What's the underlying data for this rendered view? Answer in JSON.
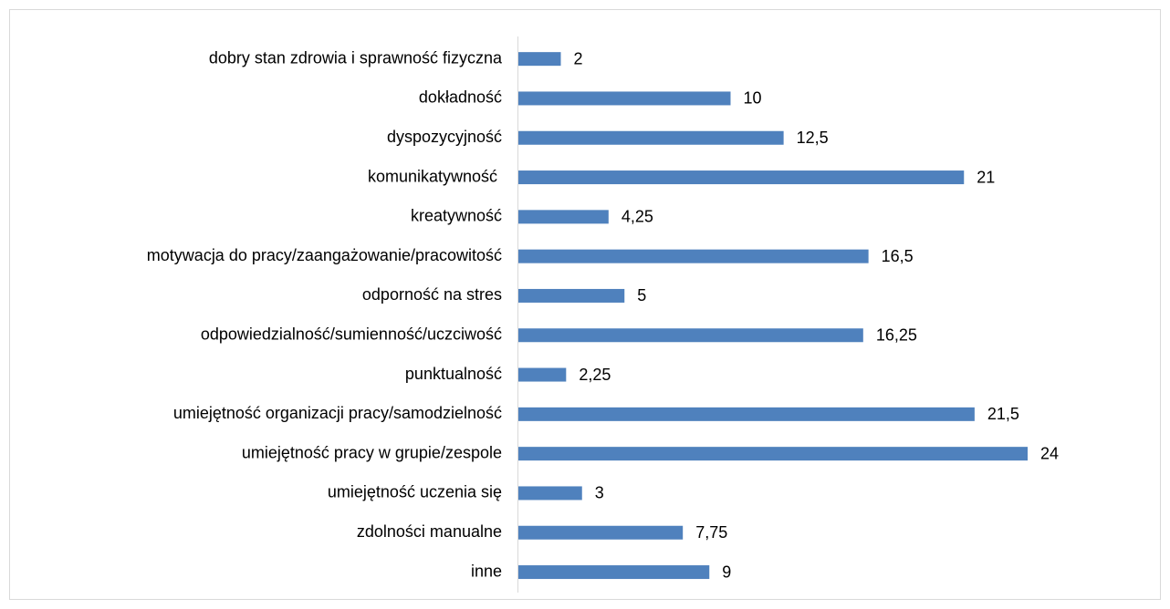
{
  "chart_data": {
    "type": "barh",
    "categories": [
      "dobry stan zdrowia i sprawność fizyczna",
      "dokładność",
      "dyspozycyjność",
      "komunikatywność ",
      "kreatywność",
      "motywacja do pracy/zaangażowanie/pracowitość",
      "odporność na stres",
      "odpowiedzialność/sumienność/uczciwość",
      "punktualność",
      "umiejętność organizacji pracy/samodzielność",
      "umiejętność pracy w grupie/zespole",
      "umiejętność uczenia się",
      "zdolności manualne",
      "inne"
    ],
    "values": [
      2,
      10,
      12.5,
      21,
      4.25,
      16.5,
      5,
      16.25,
      2.25,
      21.5,
      24,
      3,
      7.75,
      9
    ],
    "value_labels": [
      "2",
      "10",
      "12,5",
      "21",
      "4,25",
      "16,5",
      "5",
      "16,25",
      "2,25",
      "21,5",
      "24",
      "3",
      "7,75",
      "9"
    ],
    "color": "#4f81bd"
  }
}
